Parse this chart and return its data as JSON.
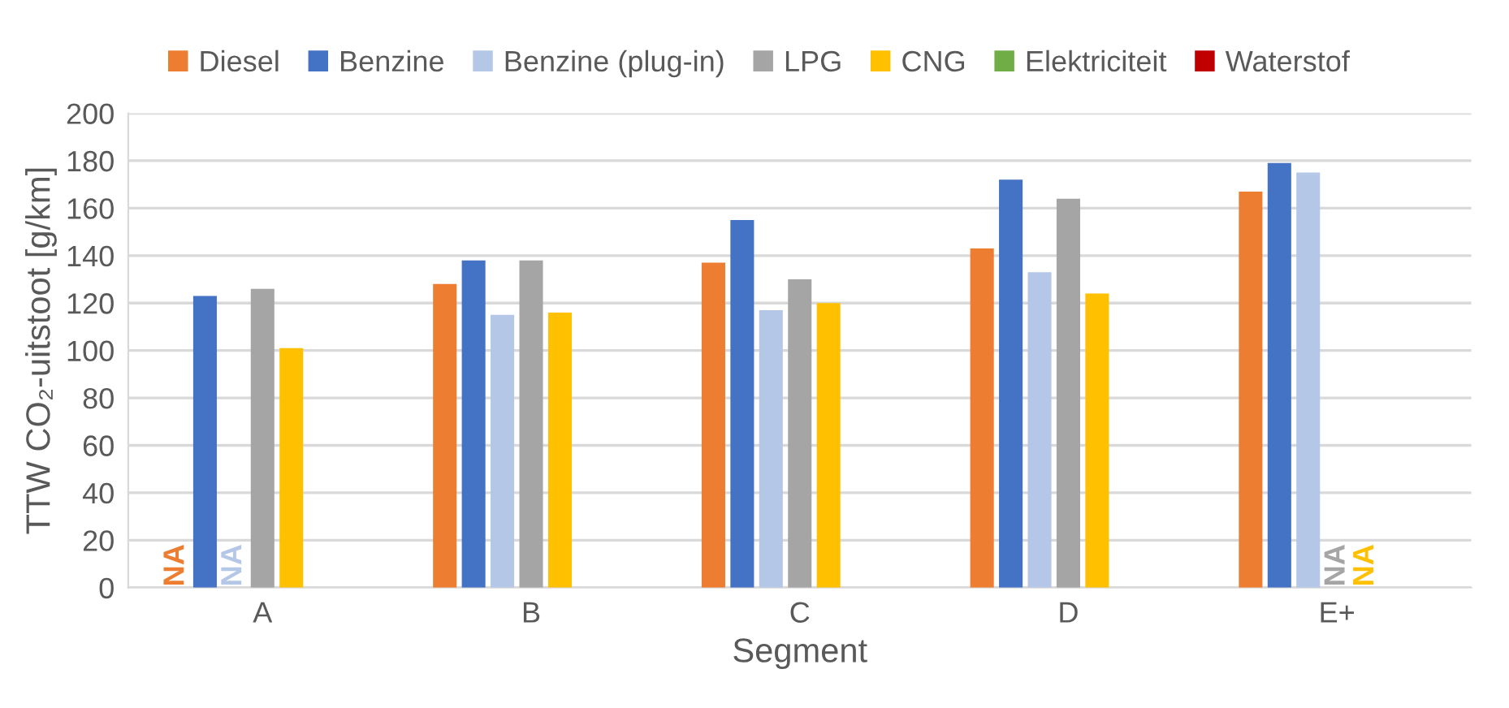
{
  "chart_data": {
    "type": "bar",
    "xlabel": "Segment",
    "ylabel": "TTW CO₂-uitstoot [g/km]",
    "categories": [
      "A",
      "B",
      "C",
      "D",
      "E+"
    ],
    "series": [
      {
        "name": "Diesel",
        "color": "#ed7d31",
        "values": [
          null,
          128,
          137,
          143,
          167
        ],
        "value_labels": [
          "NA",
          null,
          null,
          null,
          null
        ]
      },
      {
        "name": "Benzine",
        "color": "#4472c4",
        "values": [
          123,
          138,
          155,
          172,
          179
        ]
      },
      {
        "name": "Benzine (plug-in)",
        "color": "#b4c7e7",
        "values": [
          null,
          115,
          117,
          133,
          175
        ],
        "value_labels": [
          "NA",
          null,
          null,
          null,
          null
        ]
      },
      {
        "name": "LPG",
        "color": "#a5a5a5",
        "values": [
          126,
          138,
          130,
          164,
          null
        ],
        "value_labels": [
          null,
          null,
          null,
          null,
          "NA"
        ]
      },
      {
        "name": "CNG",
        "color": "#ffc000",
        "values": [
          101,
          116,
          120,
          124,
          null
        ],
        "value_labels": [
          null,
          null,
          null,
          null,
          "NA"
        ]
      },
      {
        "name": "Elektriciteit",
        "color": "#70ad47",
        "values": [
          null,
          null,
          null,
          null,
          null
        ]
      },
      {
        "name": "Waterstof",
        "color": "#c00000",
        "values": [
          null,
          null,
          null,
          null,
          null
        ]
      }
    ],
    "ylim": [
      0,
      200
    ],
    "yticks": [
      0,
      20,
      40,
      60,
      80,
      100,
      120,
      140,
      160,
      180,
      200
    ],
    "grid": "y",
    "legend": "top"
  }
}
